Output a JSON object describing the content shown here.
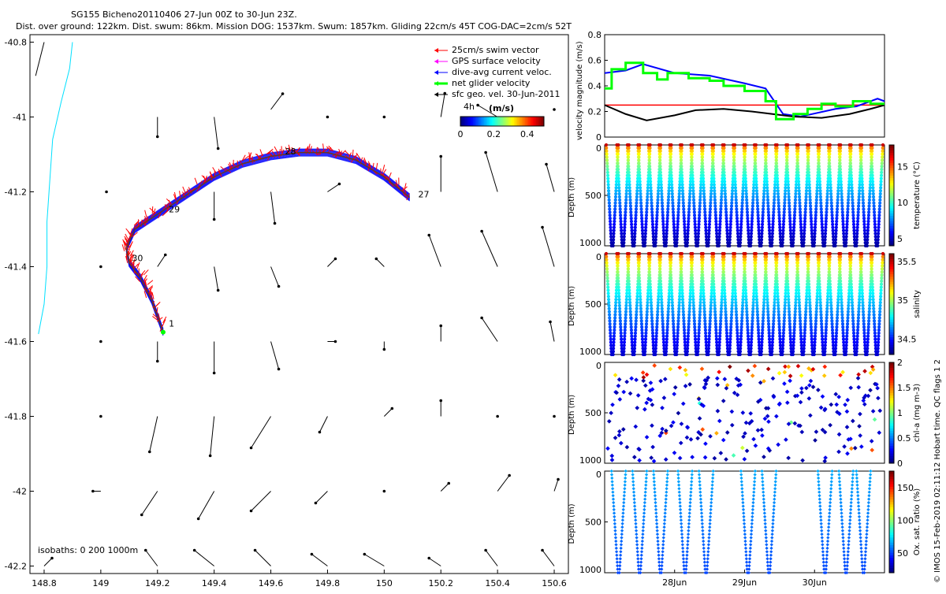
{
  "header": {
    "line1": "SG155 Bicheno20110406 27-Jun 00Z to 30-Jun 23Z.",
    "line2": "Dist. over ground: 122km. Dist. swum: 86km. Mission DOG: 1537km. Swum: 1857km. Gliding 22cm/s 45T COG-DAC=2cm/s 52T"
  },
  "credit": "© IMOS 15-Feb-2019 02:11:12 Hobart time. QC flags 1  2",
  "colors": {
    "swim": "#ff0000",
    "gps": "#ff00ff",
    "dac": "#0000ff",
    "net": "#00ff00",
    "geo": "#000000",
    "coast": "#00e0ff",
    "redline": "#ff0000"
  },
  "chart_data": [
    {
      "type": "scatter",
      "name": "map",
      "xlim": [
        148.75,
        150.65
      ],
      "ylim": [
        -42.22,
        -40.78
      ],
      "xticks": [
        "148.8",
        "149",
        "149.2",
        "149.4",
        "149.6",
        "149.8",
        "150",
        "150.2",
        "150.4",
        "150.6"
      ],
      "xtick_values": [
        148.8,
        149.0,
        149.2,
        149.4,
        149.6,
        149.8,
        150.0,
        150.2,
        150.4,
        150.6
      ],
      "yticks": [
        "-40.8",
        "-41",
        "-41.2",
        "-41.4",
        "-41.6",
        "-41.8",
        "-42",
        "-42.2"
      ],
      "ytick_values": [
        -40.8,
        -41.0,
        -41.2,
        -41.4,
        -41.6,
        -41.8,
        -42.0,
        -42.2
      ],
      "legend": [
        {
          "label": "25cm/s swim vector",
          "color": "#ff0000",
          "icon": "arrow"
        },
        {
          "label": "GPS surface velocity",
          "color": "#ff00ff",
          "icon": "arrow"
        },
        {
          "label": "dive-avg current veloc.",
          "color": "#0000ff",
          "icon": "arrow"
        },
        {
          "label": "net glider velocity",
          "color": "#00ff00",
          "icon": "thick-arrow"
        },
        {
          "label": "sfc geo. vel. 30-Jun-2011",
          "color": "#000000",
          "icon": "arrow"
        }
      ],
      "colorbar": {
        "label": "(m/s)",
        "ticks": [
          "0",
          "0.2",
          "0.4"
        ],
        "range": [
          0,
          0.5
        ]
      },
      "annotations": [
        {
          "text": "4h",
          "lon": 150.28,
          "lat": -40.98
        },
        {
          "text": "27",
          "lon": 150.12,
          "lat": -41.215
        },
        {
          "text": "28",
          "lon": 149.65,
          "lat": -41.1
        },
        {
          "text": "29",
          "lon": 149.24,
          "lat": -41.255
        },
        {
          "text": "30",
          "lon": 149.11,
          "lat": -41.385
        },
        {
          "text": "1",
          "lon": 149.24,
          "lat": -41.56
        }
      ],
      "isobaths_label": "isobaths: 0   200   1000m",
      "track": [
        [
          150.09,
          -41.215
        ],
        [
          150.0,
          -41.16
        ],
        [
          149.9,
          -41.115
        ],
        [
          149.8,
          -41.095
        ],
        [
          149.7,
          -41.095
        ],
        [
          149.6,
          -41.105
        ],
        [
          149.5,
          -41.125
        ],
        [
          149.4,
          -41.16
        ],
        [
          149.3,
          -41.21
        ],
        [
          149.2,
          -41.26
        ],
        [
          149.12,
          -41.3
        ],
        [
          149.09,
          -41.35
        ],
        [
          149.1,
          -41.39
        ],
        [
          149.14,
          -41.43
        ],
        [
          149.18,
          -41.49
        ],
        [
          149.22,
          -41.575
        ]
      ],
      "coastline": [
        [
          148.9,
          -40.8
        ],
        [
          148.89,
          -40.87
        ],
        [
          148.86,
          -40.96
        ],
        [
          148.83,
          -41.06
        ],
        [
          148.82,
          -41.17
        ],
        [
          148.81,
          -41.28
        ],
        [
          148.81,
          -41.4
        ],
        [
          148.8,
          -41.5
        ],
        [
          148.78,
          -41.58
        ]
      ],
      "geo_vectors": [
        {
          "lon": 149.02,
          "lat": -41.2,
          "u": 0.0,
          "v": 0.0
        },
        {
          "lon": 149.2,
          "lat": -41.0,
          "u": 0.0,
          "v": -0.05
        },
        {
          "lon": 149.4,
          "lat": -41.0,
          "u": 0.01,
          "v": -0.08
        },
        {
          "lon": 149.6,
          "lat": -40.98,
          "u": 0.03,
          "v": 0.04
        },
        {
          "lon": 149.8,
          "lat": -41.0,
          "u": 0.0,
          "v": 0.0
        },
        {
          "lon": 150.0,
          "lat": -41.0,
          "u": 0.0,
          "v": 0.0
        },
        {
          "lon": 150.2,
          "lat": -41.0,
          "u": 0.01,
          "v": 0.06
        },
        {
          "lon": 150.4,
          "lat": -41.0,
          "u": -0.05,
          "v": 0.03
        },
        {
          "lon": 150.6,
          "lat": -40.98,
          "u": 0.0,
          "v": 0.0
        },
        {
          "lon": 149.4,
          "lat": -41.2,
          "u": 0.0,
          "v": -0.07
        },
        {
          "lon": 149.6,
          "lat": -41.2,
          "u": 0.01,
          "v": -0.08
        },
        {
          "lon": 149.8,
          "lat": -41.2,
          "u": 0.03,
          "v": 0.02
        },
        {
          "lon": 150.2,
          "lat": -41.2,
          "u": 0.0,
          "v": 0.09
        },
        {
          "lon": 150.4,
          "lat": -41.2,
          "u": -0.03,
          "v": 0.1
        },
        {
          "lon": 150.6,
          "lat": -41.2,
          "u": -0.02,
          "v": 0.07
        },
        {
          "lon": 149.0,
          "lat": -41.4,
          "u": 0.0,
          "v": 0.0
        },
        {
          "lon": 149.2,
          "lat": -41.4,
          "u": 0.02,
          "v": 0.03
        },
        {
          "lon": 149.4,
          "lat": -41.4,
          "u": 0.01,
          "v": -0.06
        },
        {
          "lon": 149.6,
          "lat": -41.4,
          "u": 0.02,
          "v": -0.05
        },
        {
          "lon": 149.8,
          "lat": -41.4,
          "u": 0.02,
          "v": 0.02
        },
        {
          "lon": 150.0,
          "lat": -41.4,
          "u": -0.02,
          "v": 0.02
        },
        {
          "lon": 150.2,
          "lat": -41.4,
          "u": -0.03,
          "v": 0.08
        },
        {
          "lon": 150.4,
          "lat": -41.4,
          "u": -0.04,
          "v": 0.09
        },
        {
          "lon": 150.6,
          "lat": -41.4,
          "u": -0.03,
          "v": 0.1
        },
        {
          "lon": 149.0,
          "lat": -41.6,
          "u": 0.0,
          "v": 0.0
        },
        {
          "lon": 149.2,
          "lat": -41.6,
          "u": 0.0,
          "v": -0.05
        },
        {
          "lon": 149.4,
          "lat": -41.6,
          "u": 0.0,
          "v": -0.08
        },
        {
          "lon": 149.6,
          "lat": -41.6,
          "u": 0.02,
          "v": -0.07
        },
        {
          "lon": 149.8,
          "lat": -41.6,
          "u": 0.02,
          "v": 0.0
        },
        {
          "lon": 150.0,
          "lat": -41.6,
          "u": 0.0,
          "v": -0.02
        },
        {
          "lon": 150.2,
          "lat": -41.6,
          "u": 0.0,
          "v": 0.04
        },
        {
          "lon": 150.4,
          "lat": -41.6,
          "u": -0.04,
          "v": 0.06
        },
        {
          "lon": 150.6,
          "lat": -41.6,
          "u": -0.01,
          "v": 0.05
        },
        {
          "lon": 149.0,
          "lat": -41.8,
          "u": 0.0,
          "v": 0.0
        },
        {
          "lon": 149.2,
          "lat": -41.8,
          "u": -0.02,
          "v": -0.09
        },
        {
          "lon": 149.4,
          "lat": -41.8,
          "u": -0.01,
          "v": -0.1
        },
        {
          "lon": 149.6,
          "lat": -41.8,
          "u": -0.05,
          "v": -0.08
        },
        {
          "lon": 149.8,
          "lat": -41.8,
          "u": -0.02,
          "v": -0.04
        },
        {
          "lon": 150.0,
          "lat": -41.8,
          "u": 0.02,
          "v": 0.02
        },
        {
          "lon": 150.2,
          "lat": -41.8,
          "u": 0.0,
          "v": 0.04
        },
        {
          "lon": 150.4,
          "lat": -41.8,
          "u": 0.0,
          "v": 0.0
        },
        {
          "lon": 150.6,
          "lat": -41.8,
          "u": 0.0,
          "v": 0.0
        },
        {
          "lon": 149.0,
          "lat": -42.0,
          "u": -0.02,
          "v": 0.0
        },
        {
          "lon": 149.2,
          "lat": -42.0,
          "u": -0.04,
          "v": -0.06
        },
        {
          "lon": 149.4,
          "lat": -42.0,
          "u": -0.04,
          "v": -0.07
        },
        {
          "lon": 149.6,
          "lat": -42.0,
          "u": -0.05,
          "v": -0.05
        },
        {
          "lon": 149.8,
          "lat": -42.0,
          "u": -0.03,
          "v": -0.03
        },
        {
          "lon": 150.0,
          "lat": -42.0,
          "u": 0.0,
          "v": 0.0
        },
        {
          "lon": 150.2,
          "lat": -42.0,
          "u": 0.02,
          "v": 0.02
        },
        {
          "lon": 150.4,
          "lat": -42.0,
          "u": 0.03,
          "v": 0.04
        },
        {
          "lon": 150.6,
          "lat": -42.0,
          "u": 0.01,
          "v": 0.03
        },
        {
          "lon": 148.8,
          "lat": -42.2,
          "u": 0.02,
          "v": 0.02
        },
        {
          "lon": 149.2,
          "lat": -42.2,
          "u": -0.03,
          "v": 0.04
        },
        {
          "lon": 149.4,
          "lat": -42.2,
          "u": -0.05,
          "v": 0.04
        },
        {
          "lon": 149.6,
          "lat": -42.2,
          "u": -0.04,
          "v": 0.04
        },
        {
          "lon": 149.8,
          "lat": -42.2,
          "u": -0.04,
          "v": 0.03
        },
        {
          "lon": 150.0,
          "lat": -42.2,
          "u": -0.05,
          "v": 0.03
        },
        {
          "lon": 150.2,
          "lat": -42.2,
          "u": -0.03,
          "v": 0.02
        },
        {
          "lon": 150.4,
          "lat": -42.2,
          "u": -0.03,
          "v": 0.04
        },
        {
          "lon": 150.6,
          "lat": -42.2,
          "u": -0.03,
          "v": 0.04
        }
      ]
    },
    {
      "type": "line",
      "name": "velocity",
      "ylabel": "velocity magnitude (m/s)",
      "xlim": [
        0,
        4
      ],
      "ylim": [
        0,
        0.8
      ],
      "yticks": [
        "0",
        "0.2",
        "0.4",
        "0.6",
        "0.8"
      ],
      "ytick_values": [
        0,
        0.2,
        0.4,
        0.6,
        0.8
      ],
      "red_line_value": 0.25,
      "series": [
        {
          "color": "#0000ff",
          "x": [
            0,
            0.3,
            0.55,
            1.0,
            1.5,
            2.0,
            2.3,
            2.55,
            2.8,
            3.3,
            3.6,
            3.9,
            4.0
          ],
          "values": [
            0.5,
            0.52,
            0.57,
            0.5,
            0.48,
            0.42,
            0.38,
            0.18,
            0.16,
            0.22,
            0.24,
            0.3,
            0.28
          ]
        },
        {
          "color": "#000000",
          "x": [
            0,
            0.3,
            0.6,
            1.0,
            1.3,
            1.7,
            2.1,
            2.4,
            2.7,
            3.1,
            3.5,
            3.8,
            4.0
          ],
          "values": [
            0.25,
            0.18,
            0.13,
            0.17,
            0.21,
            0.22,
            0.2,
            0.18,
            0.16,
            0.15,
            0.18,
            0.22,
            0.25
          ]
        },
        {
          "color": "#00ff00",
          "x": [
            0,
            0.1,
            0.1,
            0.3,
            0.3,
            0.55,
            0.55,
            0.75,
            0.75,
            0.9,
            0.9,
            1.2,
            1.2,
            1.5,
            1.5,
            1.7,
            1.7,
            2.0,
            2.0,
            2.3,
            2.3,
            2.45,
            2.45,
            2.7,
            2.7,
            2.9,
            2.9,
            3.1,
            3.1,
            3.3,
            3.3,
            3.55,
            3.55,
            3.8,
            3.8,
            4.0
          ],
          "values": [
            0.38,
            0.38,
            0.53,
            0.53,
            0.58,
            0.58,
            0.5,
            0.5,
            0.45,
            0.45,
            0.5,
            0.5,
            0.46,
            0.46,
            0.44,
            0.44,
            0.4,
            0.4,
            0.36,
            0.36,
            0.28,
            0.28,
            0.14,
            0.14,
            0.18,
            0.18,
            0.22,
            0.22,
            0.26,
            0.26,
            0.24,
            0.24,
            0.28,
            0.28,
            0.26,
            0.26
          ]
        }
      ]
    },
    {
      "type": "heatmap",
      "name": "temperature",
      "ylabel": "Depth (m)",
      "clabel": "temperature (°C)",
      "ylim": [
        0,
        1000
      ],
      "yticks": [
        "0",
        "500",
        "1000"
      ],
      "ytick_values": [
        0,
        500,
        1000
      ],
      "clim": [
        4,
        18
      ],
      "cticks": [
        "5",
        "10",
        "15"
      ],
      "ctick_values": [
        5,
        10,
        15
      ],
      "dives": 26,
      "surface_value": 17,
      "deep_value": 4.5
    },
    {
      "type": "heatmap",
      "name": "salinity",
      "ylabel": "Depth (m)",
      "clabel": "salinity",
      "ylim": [
        0,
        1000
      ],
      "yticks": [
        "0",
        "500",
        "1000"
      ],
      "ytick_values": [
        0,
        500,
        1000
      ],
      "clim": [
        34.3,
        35.6
      ],
      "cticks": [
        "34.5",
        "35",
        "35.5"
      ],
      "ctick_values": [
        34.5,
        35,
        35.5
      ],
      "dives": 26,
      "surface_value": 35.5,
      "deep_value": 34.4
    },
    {
      "type": "scatter",
      "name": "chla",
      "ylabel": "Depth (m)",
      "clabel": "chl-a (mg m-3)",
      "ylim": [
        0,
        1000
      ],
      "yticks": [
        "0",
        "500",
        "1000"
      ],
      "ytick_values": [
        0,
        500,
        1000
      ],
      "clim": [
        0,
        2
      ],
      "cticks": [
        "0",
        "0.5",
        "1",
        "1.5",
        "2"
      ],
      "ctick_values": [
        0,
        0.5,
        1,
        1.5,
        2
      ],
      "dives": 26
    },
    {
      "type": "scatter",
      "name": "oxygen",
      "ylabel": "Depth (m)",
      "clabel": "Ox. sat. ratio (%)",
      "ylim": [
        0,
        1000
      ],
      "yticks": [
        "0",
        "500",
        "1000"
      ],
      "ytick_values": [
        0,
        500,
        1000
      ],
      "clim": [
        20,
        175
      ],
      "cticks": [
        "50",
        "100",
        "150"
      ],
      "ctick_values": [
        50,
        100,
        150
      ],
      "xlim": [
        0,
        4
      ],
      "xticks": [
        "28Jun",
        "29Jun",
        "30Jun"
      ],
      "xtick_values": [
        1,
        2,
        3
      ],
      "dive_times": [
        0.2,
        0.5,
        0.8,
        1.15,
        1.45,
        2.05,
        2.35,
        3.15,
        3.45,
        3.7
      ],
      "surface_value": 60,
      "deep_value": 40
    }
  ]
}
